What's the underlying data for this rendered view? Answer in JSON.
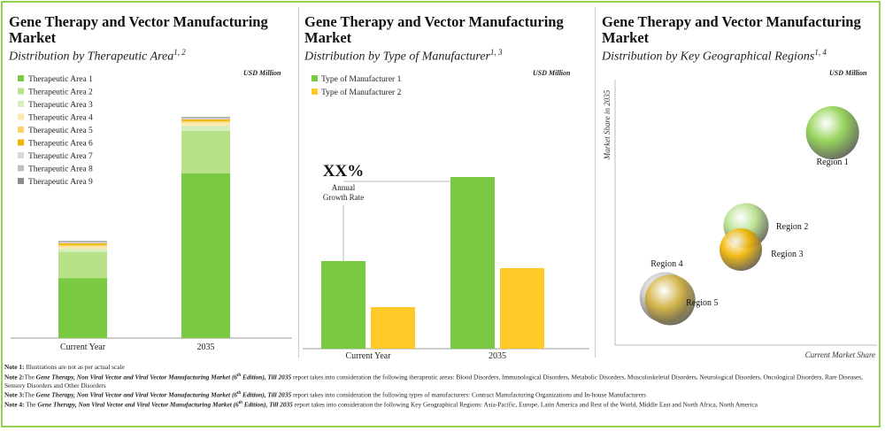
{
  "panels": [
    {
      "title_line1": "Gene Therapy  and Vector Manufacturing",
      "title_line2": "Market",
      "subtitle": "Distribution by Therapeutic Area",
      "sup": "1, 2",
      "unit": "USD Million"
    },
    {
      "title_line1": "Gene Therapy  and Vector Manufacturing",
      "title_line2": "Market",
      "subtitle": "Distribution by Type of Manufacturer",
      "sup": "1, 3",
      "unit": "USD Million"
    },
    {
      "title_line1": "Gene Therapy  and Vector Manufacturing",
      "title_line2": "Market",
      "subtitle": "Distribution by Key Geographical Regions",
      "sup": "1, 4",
      "unit": "USD Million"
    }
  ],
  "chart_data": [
    {
      "type": "bar",
      "stacked": true,
      "categories": [
        "Current Year",
        "2035"
      ],
      "series": [
        {
          "name": "Therapeutic Area 1",
          "color": "#7ac943",
          "values": [
            78,
            214
          ]
        },
        {
          "name": "Therapeutic Area 2",
          "color": "#b7e28a",
          "values": [
            34,
            55
          ]
        },
        {
          "name": "Therapeutic Area 3",
          "color": "#d6eebc",
          "values": [
            4,
            7
          ]
        },
        {
          "name": "Therapeutic Area 4",
          "color": "#fce9b0",
          "values": [
            3,
            4
          ]
        },
        {
          "name": "Therapeutic Area 5",
          "color": "#f8d36b",
          "values": [
            2,
            2
          ]
        },
        {
          "name": "Therapeutic Area 6",
          "color": "#f0b400",
          "values": [
            2,
            2
          ]
        },
        {
          "name": "Therapeutic Area 7",
          "color": "#d9d9d9",
          "values": [
            1,
            1
          ]
        },
        {
          "name": "Therapeutic Area 8",
          "color": "#bfbfbf",
          "values": [
            1,
            1
          ]
        },
        {
          "name": "Therapeutic Area 9",
          "color": "#8c8c8c",
          "values": [
            1,
            1
          ]
        }
      ],
      "unit": "USD Million"
    },
    {
      "type": "bar",
      "categories": [
        "Current Year",
        "2035"
      ],
      "series": [
        {
          "name": "Type of Manufacturer 1",
          "color": "#7ac943",
          "values": [
            99,
            194
          ]
        },
        {
          "name": "Type of Manufacturer 2",
          "color": "#ffca28",
          "values": [
            47,
            91
          ]
        }
      ],
      "annotation": {
        "value": "XX%",
        "label_line1": "Annual",
        "label_line2": "Growth Rate"
      },
      "unit": "USD Million"
    },
    {
      "type": "scatter",
      "xlabel": "Current Market Share",
      "ylabel": "Market Share in 2035",
      "xlim": [
        0,
        100
      ],
      "ylim": [
        0,
        100
      ],
      "points": [
        {
          "name": "Region 1",
          "x": 83,
          "y": 80,
          "size": 1.0,
          "color": "#8fd14f"
        },
        {
          "name": "Region 2",
          "x": 50,
          "y": 45,
          "size": 0.85,
          "color": "#b6e08a"
        },
        {
          "name": "Region 3",
          "x": 48,
          "y": 36,
          "size": 0.8,
          "color": "#f0b400"
        },
        {
          "name": "Region 4",
          "x": 19,
          "y": 18,
          "size": 0.95,
          "color": "#c8c8c8"
        },
        {
          "name": "Region 5",
          "x": 21,
          "y": 17,
          "size": 0.95,
          "color": "#d4b440"
        }
      ],
      "unit": "USD Million"
    }
  ],
  "notes": [
    {
      "label": "Note 1:",
      "parts": [
        {
          "t": " Illustrations are not as per actual scale",
          "s": ""
        }
      ]
    },
    {
      "label": "Note 2:",
      "parts": [
        {
          "t": "The ",
          "s": ""
        },
        {
          "t": "Gene Therapy, Non Viral Vector and Viral Vector Manufacturing Market (6",
          "s": "bi"
        },
        {
          "t": "th",
          "s": "bisup"
        },
        {
          "t": " Edition), Till 2035",
          "s": "bi"
        },
        {
          "t": " report takes into consideration the following therapeutic areas: Blood Disorders, Immunological Disorders, Metabolic Disorders, Musculoskeletal Disorders, Neurological Disorders, Oncological Disorders, Rare Diseases, Sensory Disorders and Other Disorders",
          "s": ""
        }
      ]
    },
    {
      "label": "Note 3:",
      "parts": [
        {
          "t": "The ",
          "s": ""
        },
        {
          "t": "Gene Therapy, Non Viral Vector and Viral Vector Manufacturing Market (6",
          "s": "bi"
        },
        {
          "t": "th",
          "s": "bisup"
        },
        {
          "t": " Edition), Till 2035",
          "s": "bi"
        },
        {
          "t": " report takes into consideration the following types of manufacturers: Contract Manufacturing Organizations and In-house Manufacturers",
          "s": ""
        }
      ]
    },
    {
      "label": "Note 4:",
      "parts": [
        {
          "t": " The ",
          "s": ""
        },
        {
          "t": "Gene Therapy, Non Viral Vector and Viral Vector Manufacturing Market (6",
          "s": "bi"
        },
        {
          "t": "th",
          "s": "bisup"
        },
        {
          "t": " Edition), Till 2035",
          "s": "bi"
        },
        {
          "t": " report takes into consideration the following Key Geographical Regions: Asia-Pacific, Europe, Latin America and Rest of the World, Middle East and North Africa, North America",
          "s": ""
        }
      ]
    }
  ]
}
